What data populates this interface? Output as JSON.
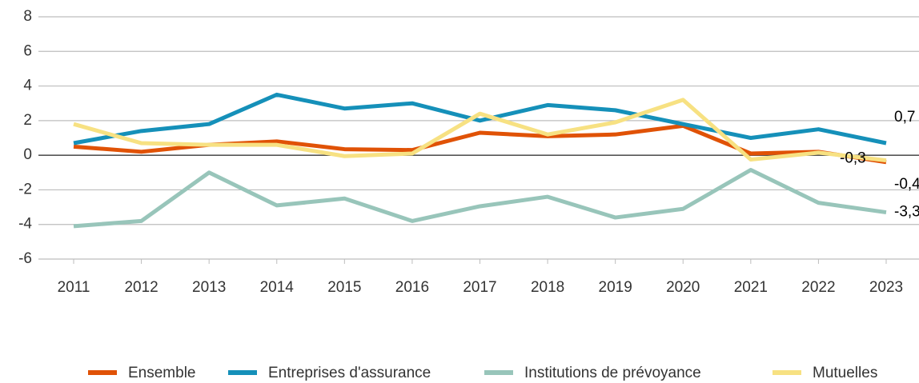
{
  "chart_data": {
    "type": "line",
    "x": [
      2011,
      2012,
      2013,
      2014,
      2015,
      2016,
      2017,
      2018,
      2019,
      2020,
      2021,
      2022,
      2023
    ],
    "series": [
      {
        "name": "Ensemble",
        "color": "#e05206",
        "values": [
          0.5,
          0.2,
          0.6,
          0.8,
          0.35,
          0.3,
          1.3,
          1.1,
          1.2,
          1.7,
          0.1,
          0.2,
          -0.4
        ],
        "value_labels": [
          null,
          null,
          null,
          null,
          null,
          null,
          null,
          null,
          null,
          null,
          null,
          null,
          "-0,4"
        ]
      },
      {
        "name": "Entreprises d'assurance",
        "color": "#1590b9",
        "values": [
          0.7,
          1.4,
          1.8,
          3.5,
          2.7,
          3.0,
          2.0,
          2.9,
          2.6,
          1.8,
          1.0,
          1.5,
          0.7
        ],
        "value_labels": [
          null,
          null,
          null,
          null,
          null,
          null,
          null,
          null,
          null,
          null,
          null,
          null,
          "0,7"
        ]
      },
      {
        "name": "Institutions de prévoyance",
        "color": "#98c5ba",
        "values": [
          -4.1,
          -3.8,
          -1.0,
          -2.9,
          -2.5,
          -3.8,
          -2.95,
          -2.4,
          -3.6,
          -3.1,
          -0.85,
          -2.75,
          -3.3
        ],
        "value_labels": [
          null,
          null,
          null,
          null,
          null,
          null,
          null,
          null,
          null,
          null,
          null,
          null,
          "-3,3"
        ]
      },
      {
        "name": "Mutuelles",
        "color": "#f7e182",
        "values": [
          1.8,
          0.7,
          0.6,
          0.6,
          -0.05,
          0.1,
          2.4,
          1.2,
          1.9,
          3.2,
          -0.25,
          0.15,
          -0.3
        ],
        "value_labels": [
          null,
          null,
          null,
          null,
          null,
          null,
          null,
          null,
          null,
          null,
          null,
          null,
          "-0,3"
        ]
      }
    ],
    "xlim": [
      2011,
      2023
    ],
    "xticks": [
      2011,
      2012,
      2013,
      2014,
      2015,
      2016,
      2017,
      2018,
      2019,
      2020,
      2021,
      2022,
      2023
    ],
    "ylim": [
      -6,
      8
    ],
    "yticks": [
      -6,
      -4,
      -2,
      0,
      2,
      4,
      6,
      8
    ],
    "grid": true,
    "legend": "bottom"
  }
}
